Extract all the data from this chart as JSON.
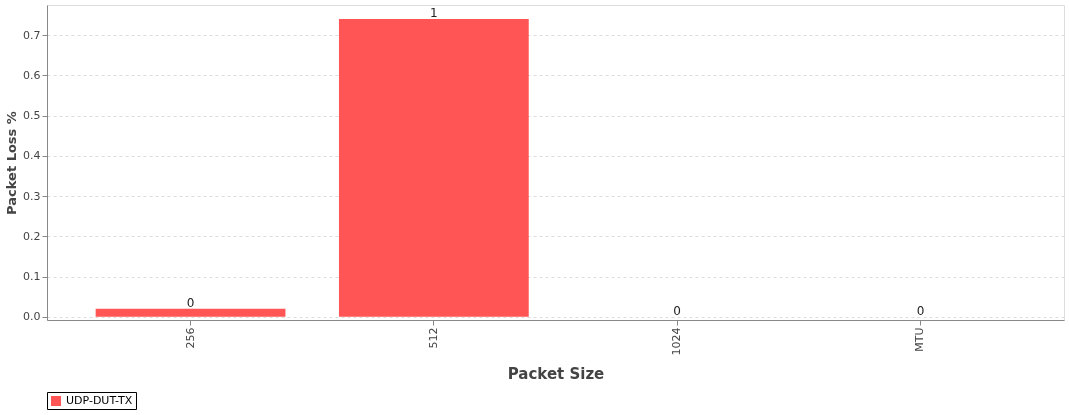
{
  "chart_data": {
    "type": "bar",
    "xlabel": "Packet Size",
    "ylabel": "Packet Loss %",
    "categories": [
      "256",
      "512",
      "1024",
      "MTU"
    ],
    "series": [
      {
        "name": "UDP-DUT-TX",
        "color": "#ff5555",
        "values": [
          0.02,
          0.74,
          0,
          0
        ]
      }
    ],
    "value_labels": [
      "0",
      "1",
      "0",
      "0"
    ],
    "ylim": [
      -0.008,
      0.775
    ],
    "yticks": [
      {
        "value": 0,
        "label": "0.0"
      },
      0.1,
      0.2,
      0.3,
      0.4,
      0.5,
      0.6,
      0.7
    ],
    "grid": "y",
    "legend": "bottom"
  }
}
